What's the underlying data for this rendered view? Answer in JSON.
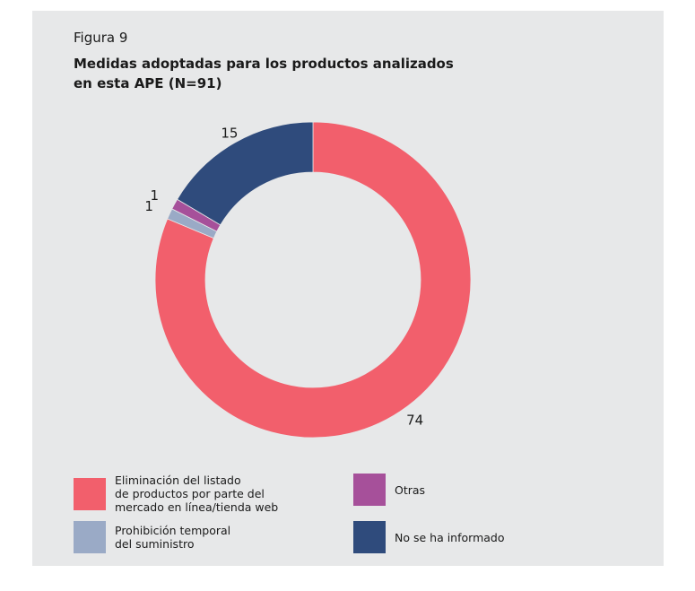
{
  "figure_label": "Figura 9",
  "title": "Medidas adoptadas para los productos analizados\nen esta APE (N=91)",
  "chart_data": {
    "type": "pie",
    "donut": true,
    "total": 91,
    "slices": [
      {
        "label": "Eliminación del listado\nde productos por parte del\nmercado en línea/tienda web",
        "value": 74,
        "color": "#f25f6c"
      },
      {
        "label": "Prohibición temporal\ndel suministro",
        "value": 1,
        "color": "#9aaac6"
      },
      {
        "label": "Otras",
        "value": 1,
        "color": "#a6509a"
      },
      {
        "label": "No se ha informado",
        "value": 15,
        "color": "#2f4b7c"
      }
    ],
    "legend_position": "bottom"
  }
}
